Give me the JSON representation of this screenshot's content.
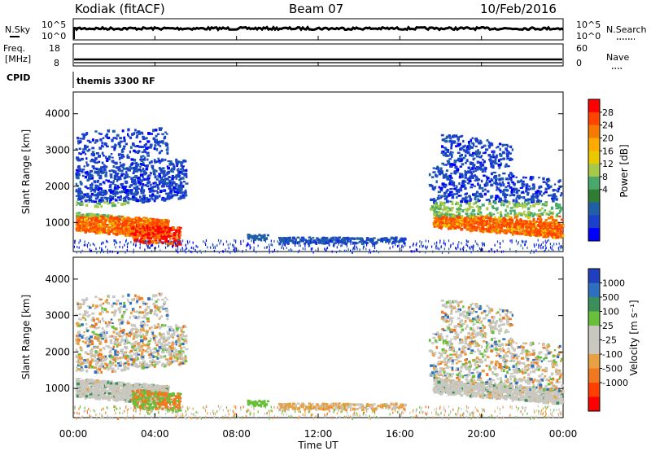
{
  "header": {
    "station": "Kodiak (fitACF)",
    "beam": "Beam 07",
    "date": "10/Feb/2016"
  },
  "chart_data": [
    {
      "type": "line",
      "panel": "noise",
      "left_label": "N.Sky",
      "right_label": "N.Search",
      "left_ticks": [
        "10^5",
        "10^0"
      ],
      "right_ticks": [
        "10^5",
        "10^0"
      ]
    },
    {
      "type": "line",
      "panel": "frequency",
      "left_label_lines": [
        "Freq.",
        "[MHz]"
      ],
      "right_label": "Nave",
      "left_ticks": [
        18,
        8
      ],
      "right_ticks": [
        60,
        0
      ],
      "cpid_label": "CPID",
      "cpid_text": "themis 3300 RF"
    },
    {
      "type": "heatmap",
      "panel": "power",
      "ylabel": "Slant Range [km]",
      "yticks": [
        1000,
        2000,
        3000,
        4000
      ],
      "ylim": [
        200,
        4600
      ],
      "xlim": [
        0,
        24
      ],
      "colorbar": {
        "label": "Power [dB]",
        "ticks": [
          "28",
          "24",
          "20",
          "16",
          "12",
          "8",
          "4"
        ],
        "colors": [
          "#ff0000",
          "#ff4400",
          "#f77a00",
          "#ffaa00",
          "#eac800",
          "#a6c94a",
          "#4aa86a",
          "#2e7d32",
          "#1f5fa8",
          "#1a40cc",
          "#0000ff"
        ]
      }
    },
    {
      "type": "heatmap",
      "panel": "velocity",
      "ylabel": "Slant Range [km]",
      "yticks": [
        1000,
        2000,
        3000,
        4000
      ],
      "ylim": [
        200,
        4600
      ],
      "xlim": [
        0,
        24
      ],
      "colorbar": {
        "label": "Velocity [m s⁻¹]",
        "ticks": [
          "1000",
          "500",
          "100",
          "25",
          "-25",
          "-100",
          "-500",
          "-1000"
        ],
        "colors": [
          "#1f3fbf",
          "#2e6fbf",
          "#3a8f5a",
          "#6abf3a",
          "#c8c8c0",
          "#c8c8c0",
          "#e8a040",
          "#f07820",
          "#ff4000",
          "#ff0000"
        ]
      }
    }
  ],
  "xaxis": {
    "label": "Time UT",
    "ticks": [
      "00:00",
      "04:00",
      "08:00",
      "12:00",
      "16:00",
      "20:00",
      "00:00"
    ]
  },
  "colors": {
    "power_low": "#1a40cc",
    "power_mid": "#2e8b57",
    "power_high": "#ff2000",
    "velocity_ground": "#c8c8c0"
  }
}
